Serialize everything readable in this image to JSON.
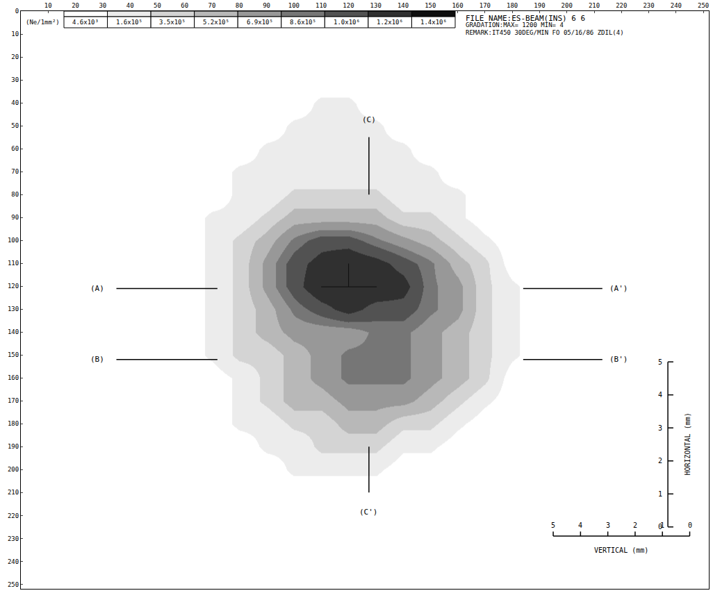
{
  "chart_data": {
    "type": "heatmap",
    "header": [
      "FILE NAME:ES-BEAM(INS) 6 6",
      "GRADATION:MAX= 1200 MIN= 4",
      "REMARK:IT450 30DEG/MIN FO 05/16/86 ZDIL(4)"
    ],
    "colorbar": {
      "title": "(Ne/1mm²)",
      "levels": [
        4600,
        160000,
        350000,
        520000,
        690000,
        860000,
        1000000,
        1200000,
        1400000
      ],
      "level_labels": [
        "4.6x10³",
        "1.6x10⁵",
        "3.5x10⁵",
        "5.2x10⁵",
        "6.9x10⁵",
        "8.6x10⁵",
        "1.0x10⁶",
        "1.2x10⁶",
        "1.4x10⁶"
      ],
      "colors": [
        "#ffffff",
        "#ececec",
        "#d4d4d4",
        "#b8b8b8",
        "#989898",
        "#767676",
        "#525252",
        "#303030",
        "#0e0e0e"
      ]
    },
    "zlim": [
      0,
      1400000
    ],
    "xlim": [
      0,
      252
    ],
    "ylim": [
      0,
      252
    ],
    "xticks": [
      10,
      20,
      30,
      40,
      50,
      60,
      70,
      80,
      90,
      100,
      110,
      120,
      130,
      140,
      150,
      160,
      170,
      180,
      190,
      200,
      210,
      220,
      230,
      240,
      250
    ],
    "yticks": [
      0,
      10,
      20,
      30,
      40,
      50,
      60,
      70,
      80,
      90,
      100,
      110,
      120,
      130,
      140,
      150,
      160,
      170,
      180,
      190,
      200,
      210,
      220,
      230,
      240,
      250
    ],
    "grid": false,
    "cell_x": [
      60,
      70,
      80,
      90,
      100,
      110,
      120,
      130,
      140,
      150,
      160,
      170,
      180,
      190,
      200
    ],
    "cell_y": [
      30,
      40,
      50,
      60,
      70,
      80,
      90,
      100,
      110,
      120,
      130,
      140,
      150,
      160,
      170,
      180,
      190,
      200,
      210,
      220
    ],
    "cells": [
      [
        0,
        0,
        0,
        0,
        50000.0,
        50000.0,
        50000.0,
        50000.0,
        0,
        0,
        0,
        0,
        0,
        0,
        0
      ],
      [
        0,
        0,
        0,
        50000.0,
        50000.0,
        200000.0,
        200000.0,
        50000.0,
        50000.0,
        0,
        0,
        0,
        0,
        0,
        0
      ],
      [
        0,
        0,
        50000.0,
        50000.0,
        200000.0,
        200000.0,
        200000.0,
        200000.0,
        50000.0,
        50000.0,
        0,
        0,
        0,
        0,
        0
      ],
      [
        0,
        50000.0,
        50000.0,
        200000.0,
        200000.0,
        200000.0,
        200000.0,
        200000.0,
        200000.0,
        50000.0,
        50000.0,
        0,
        0,
        0,
        0
      ],
      [
        0,
        50000.0,
        200000.0,
        200000.0,
        200000.0,
        200000.0,
        200000.0,
        200000.0,
        200000.0,
        200000.0,
        50000.0,
        50000.0,
        0,
        0,
        0
      ],
      [
        50000.0,
        50000.0,
        200000.0,
        200000.0,
        400000.0,
        400000.0,
        400000.0,
        400000.0,
        200000.0,
        200000.0,
        200000.0,
        50000.0,
        0,
        0,
        0
      ],
      [
        50000.0,
        200000.0,
        200000.0,
        400000.0,
        600000.0,
        600000.0,
        600000.0,
        600000.0,
        400000.0,
        400000.0,
        200000.0,
        50000.0,
        50000.0,
        0,
        0
      ],
      [
        50000.0,
        200000.0,
        400000.0,
        600000.0,
        900000.0,
        1100000.0,
        1100000.0,
        900000.0,
        750000.0,
        600000.0,
        400000.0,
        200000.0,
        50000.0,
        0,
        0
      ],
      [
        50000.0,
        200000.0,
        400000.0,
        750000.0,
        1100000.0,
        1300000.0,
        1400000.0,
        1300000.0,
        1100000.0,
        900000.0,
        600000.0,
        400000.0,
        50000.0,
        0,
        0
      ],
      [
        50000.0,
        200000.0,
        400000.0,
        750000.0,
        1100000.0,
        1400000.0,
        1400000.0,
        1400000.0,
        1300000.0,
        900000.0,
        750000.0,
        400000.0,
        200000.0,
        50000.0,
        0
      ],
      [
        50000.0,
        200000.0,
        400000.0,
        600000.0,
        900000.0,
        1100000.0,
        1300000.0,
        1100000.0,
        1100000.0,
        900000.0,
        750000.0,
        400000.0,
        200000.0,
        50000.0,
        0
      ],
      [
        50000.0,
        200000.0,
        400000.0,
        600000.0,
        750000.0,
        750000.0,
        750000.0,
        900000.0,
        900000.0,
        750000.0,
        600000.0,
        400000.0,
        200000.0,
        50000.0,
        0
      ],
      [
        50000.0,
        200000.0,
        400000.0,
        400000.0,
        600000.0,
        750000.0,
        900000.0,
        900000.0,
        900000.0,
        750000.0,
        600000.0,
        400000.0,
        200000.0,
        50000.0,
        0
      ],
      [
        50000.0,
        50000.0,
        200000.0,
        400000.0,
        600000.0,
        750000.0,
        900000.0,
        900000.0,
        900000.0,
        750000.0,
        600000.0,
        400000.0,
        50000.0,
        0,
        0
      ],
      [
        0,
        50000.0,
        200000.0,
        400000.0,
        600000.0,
        600000.0,
        750000.0,
        750000.0,
        750000.0,
        600000.0,
        400000.0,
        200000.0,
        50000.0,
        0,
        0
      ],
      [
        0,
        50000.0,
        200000.0,
        200000.0,
        400000.0,
        400000.0,
        600000.0,
        600000.0,
        400000.0,
        400000.0,
        200000.0,
        50000.0,
        0,
        0,
        0
      ],
      [
        0,
        0,
        50000.0,
        200000.0,
        200000.0,
        400000.0,
        400000.0,
        400000.0,
        200000.0,
        200000.0,
        50000.0,
        0,
        0,
        0,
        0
      ],
      [
        0,
        0,
        50000.0,
        50000.0,
        200000.0,
        200000.0,
        200000.0,
        200000.0,
        50000.0,
        50000.0,
        0,
        0,
        0,
        0,
        0
      ],
      [
        0,
        0,
        0,
        50000.0,
        50000.0,
        50000.0,
        50000.0,
        50000.0,
        0,
        0,
        0,
        0,
        0,
        0,
        0
      ],
      [
        0,
        0,
        0,
        0,
        0,
        0,
        0,
        0,
        0,
        0,
        0,
        0,
        0,
        0,
        0
      ]
    ],
    "cut_lines": [
      {
        "label": "(A)",
        "label_end": "(A')",
        "orientation": "horizontal",
        "at": 121,
        "label_pos": [
          28,
          219
        ],
        "segments": [
          [
            35,
            72
          ],
          [
            184,
            213
          ]
        ]
      },
      {
        "label": "(B)",
        "label_end": "(B')",
        "orientation": "horizontal",
        "at": 152,
        "label_pos": [
          28,
          219
        ],
        "segments": [
          [
            35,
            72
          ],
          [
            184,
            213
          ]
        ]
      },
      {
        "label": "(C)",
        "label_end": "(C')",
        "orientation": "vertical",
        "at": 127.5,
        "label_pos": [
          50,
          216
        ],
        "segments": [
          [
            55,
            80
          ],
          [
            190,
            210
          ]
        ]
      }
    ],
    "scale_bars": [
      {
        "title": "HORIZONTAL (mm)",
        "orientation": "vertical",
        "at": 237,
        "ticks": [
          0,
          1,
          2,
          3,
          4,
          5
        ],
        "from": 225,
        "to": 153
      },
      {
        "title": "VERTICAL (mm)",
        "orientation": "horizontal",
        "at": 229,
        "ticks": [
          5,
          4,
          3,
          2,
          1,
          0
        ],
        "from": 195,
        "to": 245
      }
    ]
  }
}
